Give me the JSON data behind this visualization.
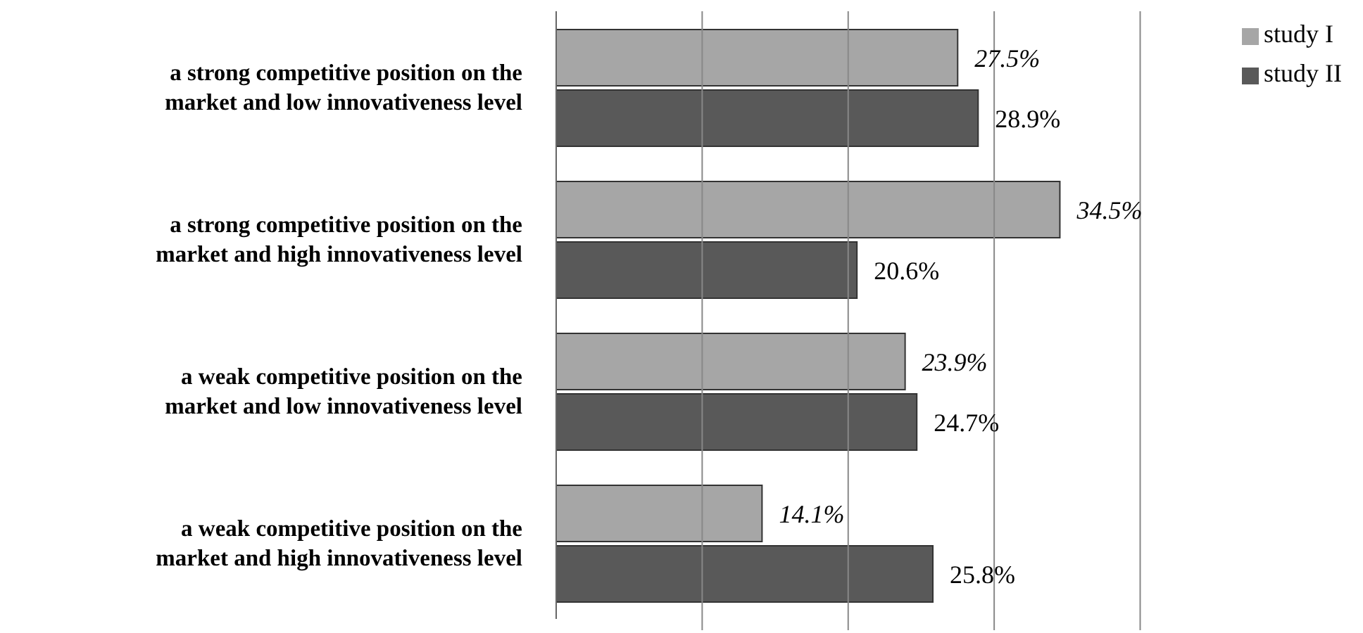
{
  "chart_data": {
    "type": "bar",
    "orientation": "horizontal",
    "categories": [
      "a strong competitive position on the market and low innovativeness level",
      "a strong competitive position on the market and high innovativeness level",
      "a weak competitive position on the market and low innovativeness level",
      "a weak competitive position on the market and high innovativeness level"
    ],
    "series": [
      {
        "name": "study I",
        "color": "#a6a6a6",
        "values": [
          27.5,
          34.5,
          23.9,
          14.1
        ],
        "value_labels": [
          "27.5%",
          "34.5%",
          "23.9%",
          "14.1%"
        ]
      },
      {
        "name": "study II",
        "color": "#595959",
        "values": [
          28.9,
          20.6,
          24.7,
          25.8
        ],
        "value_labels": [
          "28.9%",
          "20.6%",
          "24.7%",
          "25.8%"
        ]
      }
    ],
    "xticks": [
      {
        "value": 10,
        "label": null
      },
      {
        "value": 20,
        "label": null
      },
      {
        "value": 30,
        "label": null
      },
      {
        "value": 40,
        "label": null
      }
    ],
    "tick_labels": "y",
    "grid": "x",
    "legend": "top right"
  }
}
